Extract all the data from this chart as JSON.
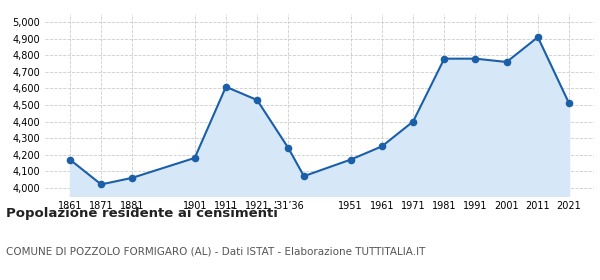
{
  "years": [
    1861,
    1871,
    1881,
    1901,
    1911,
    1921,
    1931,
    1936,
    1951,
    1961,
    1971,
    1981,
    1991,
    2001,
    2011,
    2021
  ],
  "population": [
    4170,
    4020,
    4060,
    4180,
    4610,
    4530,
    4240,
    4070,
    4170,
    4250,
    4400,
    4780,
    4780,
    4760,
    4910,
    4510
  ],
  "line_color": "#1a5fa8",
  "fill_color": "#d6e8f7",
  "marker_color": "#1a5fa8",
  "background_color": "#ffffff",
  "grid_color": "#cccccc",
  "ylim": [
    3950,
    5050
  ],
  "yticks": [
    4000,
    4100,
    4200,
    4300,
    4400,
    4500,
    4600,
    4700,
    4800,
    4900,
    5000
  ],
  "title": "Popolazione residente ai censimenti",
  "subtitle": "COMUNE DI POZZOLO FORMIGARO (AL) - Dati ISTAT - Elaborazione TUTTITALIA.IT",
  "title_fontsize": 9.5,
  "subtitle_fontsize": 7.5,
  "x_tick_positions": [
    1861,
    1871,
    1881,
    1901,
    1911,
    1921,
    1931,
    1951,
    1961,
    1971,
    1981,
    1991,
    2001,
    2011,
    2021
  ],
  "x_tick_labels": [
    "1861",
    "1871",
    "1881",
    "1901",
    "1911",
    "1921",
    "’31’36",
    "1951",
    "1961",
    "1971",
    "1981",
    "1991",
    "2001",
    "2011",
    "2021"
  ],
  "xlim": [
    1853,
    2029
  ]
}
